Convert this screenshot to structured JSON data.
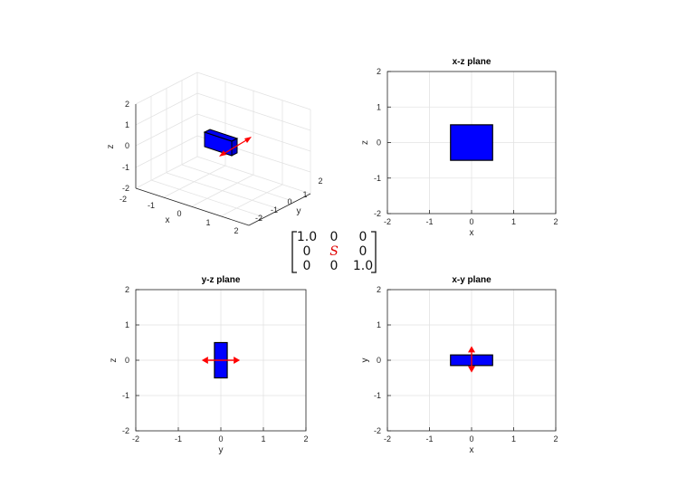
{
  "panels": {
    "iso": {
      "title": "",
      "xlabel": "x",
      "ylabel": "y",
      "zlabel": "z",
      "xticks": [
        "-2",
        "-1",
        "0",
        "1",
        "2"
      ],
      "yticks": [
        "-2",
        "-1",
        "0",
        "1",
        "2"
      ],
      "zticks": [
        "-2",
        "-1",
        "0",
        "1",
        "2"
      ]
    },
    "xz": {
      "title": "x-z plane",
      "xlabel": "x",
      "ylabel": "z",
      "xlim": [
        -2,
        2
      ],
      "ylim": [
        -2,
        2
      ],
      "ticks": [
        "-2",
        "-1",
        "0",
        "1",
        "2"
      ],
      "box": {
        "x": [
          -0.5,
          0.5
        ],
        "y": [
          -0.5,
          0.5
        ]
      },
      "arrows": []
    },
    "yz": {
      "title": "y-z plane",
      "xlabel": "y",
      "ylabel": "z",
      "xlim": [
        -2,
        2
      ],
      "ylim": [
        -2,
        2
      ],
      "ticks": [
        "-2",
        "-1",
        "0",
        "1",
        "2"
      ],
      "box": {
        "x": [
          -0.15,
          0.15
        ],
        "y": [
          -0.5,
          0.5
        ]
      },
      "arrows": [
        {
          "from": [
            -0.45,
            0
          ],
          "to": [
            0.45,
            0
          ]
        }
      ]
    },
    "xy": {
      "title": "x-y plane",
      "xlabel": "x",
      "ylabel": "y",
      "xlim": [
        -2,
        2
      ],
      "ylim": [
        -2,
        2
      ],
      "ticks": [
        "-2",
        "-1",
        "0",
        "1",
        "2"
      ],
      "box": {
        "x": [
          -0.5,
          0.5
        ],
        "y": [
          -0.15,
          0.15
        ]
      },
      "arrows": [
        {
          "from": [
            0,
            -0.35
          ],
          "to": [
            0,
            0.4
          ]
        }
      ]
    }
  },
  "matrix": {
    "rows": [
      [
        "1.0",
        "0",
        "0"
      ],
      [
        "0",
        "S",
        "0"
      ],
      [
        "0",
        "0",
        "1.0"
      ]
    ]
  },
  "colors": {
    "face": "#0000ff",
    "edge": "#000000",
    "arrow": "#ff0000"
  }
}
